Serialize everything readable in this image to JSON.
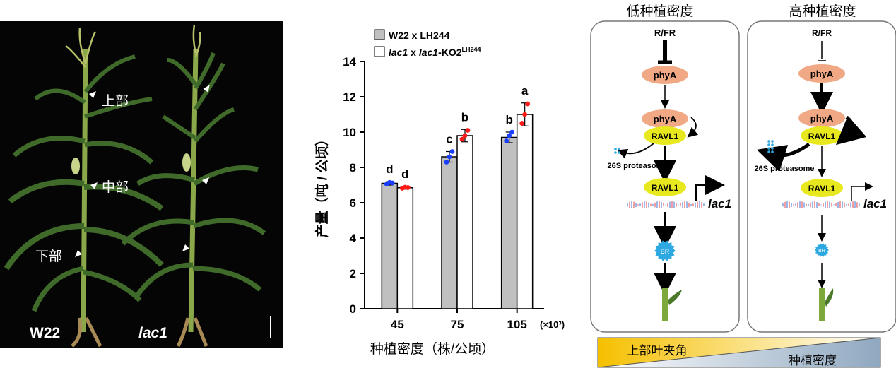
{
  "photo": {
    "labels": {
      "upper": "上部",
      "middle": "中部",
      "lower": "下部"
    },
    "plant_left": "W22",
    "plant_right": "lac1"
  },
  "chart_data": {
    "type": "bar",
    "categories": [
      "45",
      "75",
      "105"
    ],
    "x_unit": "(×10³)",
    "xlabel": "种植密度（株/公顷）",
    "ylabel": "产量（吨 / 公顷）",
    "ylim": [
      0,
      14
    ],
    "yticks": [
      0,
      2,
      4,
      6,
      8,
      10,
      12,
      14
    ],
    "series": [
      {
        "name": "W22 x LH244",
        "values": [
          7.1,
          8.6,
          9.7
        ],
        "errors": [
          0.1,
          0.3,
          0.3
        ],
        "fill": "#c0c0c0",
        "dot_color": "#1a3fff",
        "letters": [
          "d",
          "c",
          "b"
        ],
        "points": [
          [
            7.05,
            7.15,
            7.12
          ],
          [
            8.3,
            8.6,
            8.9
          ],
          [
            9.5,
            9.8,
            10.0
          ]
        ]
      },
      {
        "name": "lac1 x lac1-KO2LH244",
        "values": [
          6.85,
          9.8,
          11.0
        ],
        "errors": [
          0.08,
          0.35,
          0.65
        ],
        "fill": "#ffffff",
        "dot_color": "#ff1a1a",
        "letters": [
          "d",
          "b",
          "a"
        ],
        "points": [
          [
            6.82,
            6.88,
            6.86
          ],
          [
            9.6,
            9.8,
            10.1
          ],
          [
            10.5,
            11.0,
            11.6
          ]
        ]
      }
    ],
    "legend": [
      {
        "prefix": "W22 x LH244",
        "italic": "",
        "mid": "",
        "sup": ""
      },
      {
        "prefix": "",
        "italic": "lac1",
        "mid": " x ",
        "italic2": "lac1",
        "tail": "-KO2",
        "sup": "LH244"
      }
    ]
  },
  "pathway": {
    "low_title": "低种植密度",
    "high_title": "高种植密度",
    "rfr": "R/FR",
    "phya": "phyA",
    "ravl1": "RAVL1",
    "proteasome": "26S proteasome",
    "gene": "lac1",
    "br": "BR",
    "bottom_left": "上部叶夹角",
    "bottom_right": "种植密度",
    "colors": {
      "phya": "#f0a885",
      "ravl1": "#e8e81e",
      "br": "#2ea8e0",
      "dna_red": "#e04040",
      "dna_blue": "#3a6fd0"
    }
  }
}
